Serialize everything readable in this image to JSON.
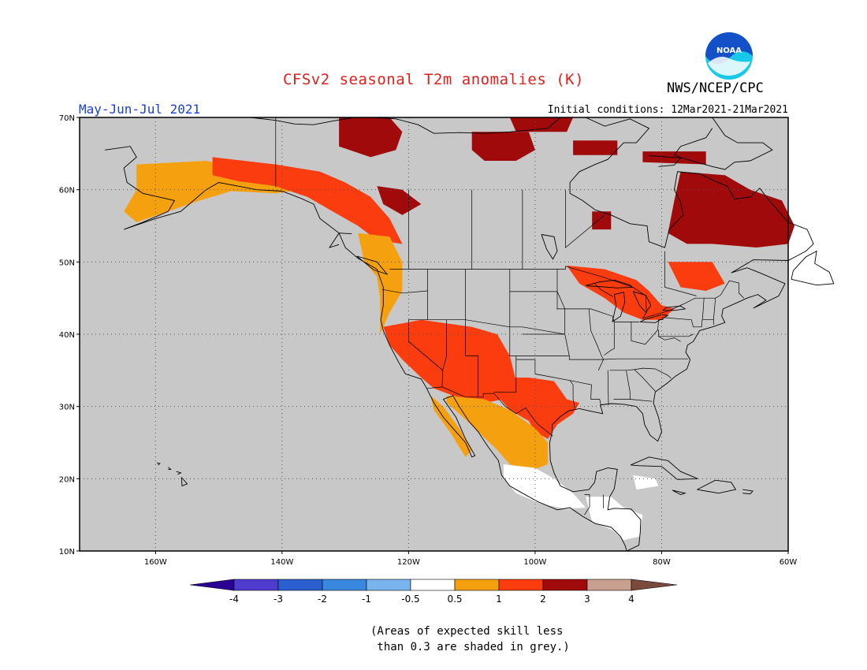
{
  "header": {
    "title": "CFSv2 seasonal T2m anomalies (K)",
    "agency": "NWS/NCEP/CPC",
    "season": "May-Jun-Jul 2021",
    "initial_conditions": "Initial conditions: 12Mar2021-21Mar2021"
  },
  "logo": {
    "text": "NOAA",
    "icon": "noaa-logo-icon"
  },
  "map": {
    "projection": "lat-lon",
    "lon_range": [
      -172,
      -60
    ],
    "lat_range": [
      10,
      70
    ],
    "lat_ticks": [
      {
        "value": 70,
        "label": "70N"
      },
      {
        "value": 60,
        "label": "60N"
      },
      {
        "value": 50,
        "label": "50N"
      },
      {
        "value": 40,
        "label": "40N"
      },
      {
        "value": 30,
        "label": "30N"
      },
      {
        "value": 20,
        "label": "20N"
      },
      {
        "value": 10,
        "label": "10N"
      }
    ],
    "lon_ticks": [
      {
        "value": -160,
        "label": "160W"
      },
      {
        "value": -140,
        "label": "140W"
      },
      {
        "value": -120,
        "label": "120W"
      },
      {
        "value": -100,
        "label": "100W"
      },
      {
        "value": -80,
        "label": "80W"
      },
      {
        "value": -60,
        "label": "60W"
      }
    ],
    "grid": true,
    "background_color": "#c8c8c8",
    "anomaly_regions": [
      {
        "label": "Alaska south coast",
        "category": "0.5 to 1",
        "color": "#f5a10f"
      },
      {
        "label": "Yukon and northern British Columbia",
        "category": "1 to 2",
        "color": "#fa3c0f"
      },
      {
        "label": "Northwest Territories",
        "category": "2 to 3",
        "color": "#a00a0a"
      },
      {
        "label": "Pacific Northwest coast",
        "category": "0.5 to 1",
        "color": "#f5a10f"
      },
      {
        "label": "Great Basin and Southwest",
        "category": "1 to 2",
        "color": "#fa3c0f"
      },
      {
        "label": "Southern Plains and Texas",
        "category": "1 to 2",
        "color": "#fa3c0f"
      },
      {
        "label": "Northern Mexico",
        "category": "0.5 to 1",
        "color": "#f5a10f"
      },
      {
        "label": "Central Mexico",
        "category": "-0.5 to 0.5",
        "color": "#ffffff"
      },
      {
        "label": "Central America",
        "category": "-0.5 to 0.5",
        "color": "#ffffff"
      },
      {
        "label": "Quebec and Labrador",
        "category": "2 to 3",
        "color": "#a00a0a"
      },
      {
        "label": "Great Lakes",
        "category": "1 to 2",
        "color": "#fa3c0f"
      },
      {
        "label": "Arctic islands",
        "category": "2 to 3",
        "color": "#a00a0a"
      }
    ]
  },
  "legend": {
    "thresholds": [
      "-4",
      "-3",
      "-2",
      "-1",
      "-0.5",
      "0.5",
      "1",
      "2",
      "3",
      "4"
    ],
    "colors": [
      "#2a0094",
      "#4f3ccf",
      "#2b5fd0",
      "#3a87e0",
      "#7ab4ee",
      "#ffffff",
      "#f5a10f",
      "#fa3c0f",
      "#a00a0a",
      "#c9a08f",
      "#7a4a3c"
    ]
  },
  "footnote": {
    "line1": "(Areas of expected skill less",
    "line2": " than 0.3 are shaded in grey.)"
  }
}
